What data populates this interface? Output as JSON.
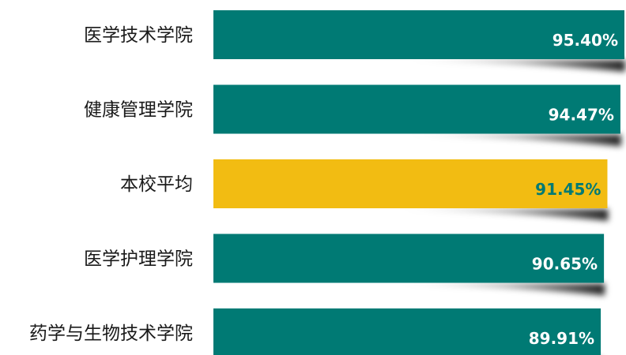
{
  "chart_data": {
    "type": "bar",
    "orientation": "horizontal",
    "categories": [
      "医学技术学院",
      "健康管理学院",
      "本校平均",
      "医学护理学院",
      "药学与生物技术学院"
    ],
    "values": [
      95.4,
      94.47,
      91.45,
      90.65,
      89.91
    ],
    "value_labels": [
      "95.40%",
      "94.47%",
      "91.45%",
      "90.65%",
      "89.91%"
    ],
    "highlight_category": "本校平均",
    "colors": {
      "bar": "#007A74",
      "highlight_bar": "#F2BC12",
      "value_text": "#FFFFFF",
      "highlight_value_text": "#007A74",
      "category_text": "#1A1A1A"
    },
    "title": "",
    "xlabel": "",
    "ylabel": "",
    "grid": false,
    "legend": "none"
  }
}
